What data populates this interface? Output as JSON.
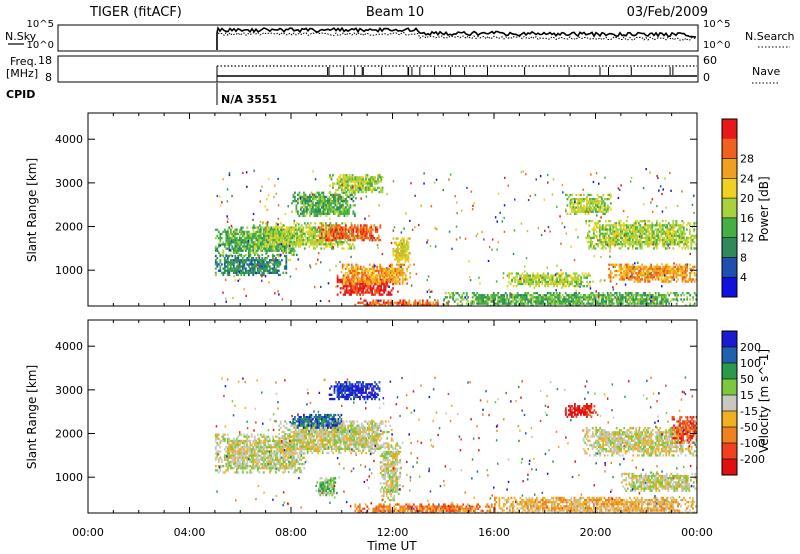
{
  "header": {
    "radar": "TIGER (fitACF)",
    "beam": "Beam 10",
    "date": "03/Feb/2009"
  },
  "summary": {
    "nsky_label": "N.Sky",
    "nsearch_label": "N.Search",
    "freq_label_line1": "Freq.",
    "freq_label_line2": "[MHz]",
    "nave_label": "Nave",
    "cpid_label": "CPID",
    "cpid_value": "N/A 3551",
    "noise_ticks": [
      "10^5",
      "10^0"
    ],
    "freq_ticks": [
      "18",
      "8"
    ],
    "nave_ticks": [
      "60",
      "0"
    ]
  },
  "x_axis": {
    "label": "Time UT",
    "ticks": [
      "00:00",
      "04:00",
      "08:00",
      "12:00",
      "16:00",
      "20:00",
      "00:00"
    ]
  },
  "colors": {
    "power": [
      "#1010e0",
      "#1e50b0",
      "#2e8a5a",
      "#44b044",
      "#a8d23c",
      "#f0d020",
      "#f0a020",
      "#f06020",
      "#e81818"
    ],
    "velocity": [
      "#1a1ad0",
      "#1f60b0",
      "#2a9a4a",
      "#7ac83c",
      "#c8c8c0",
      "#f0b020",
      "#f08020",
      "#f04020",
      "#e01010"
    ]
  },
  "chart_data": [
    {
      "type": "heatmap",
      "panel": "power",
      "title": "",
      "xlabel": "Time UT",
      "ylabel": "Slant Range [km]",
      "x_ticks": [
        "00:00",
        "04:00",
        "08:00",
        "12:00",
        "16:00",
        "20:00",
        "00:00"
      ],
      "y_ticks": [
        1000,
        2000,
        3000,
        4000
      ],
      "ylim": [
        180,
        4600
      ],
      "xlim_hours": [
        0,
        24
      ],
      "data_start_hour": 5.0,
      "colorbar": {
        "label": "Power [dB]",
        "ticks": [
          "4",
          "8",
          "12",
          "16",
          "20",
          "24",
          "28"
        ]
      },
      "regions": [
        {
          "t0": 5.0,
          "t1": 8.2,
          "r0": 1350,
          "r1": 2000,
          "level": 3
        },
        {
          "t0": 5.0,
          "t1": 7.8,
          "r0": 900,
          "r1": 1350,
          "level": 2
        },
        {
          "t0": 6.5,
          "t1": 10.5,
          "r0": 1500,
          "r1": 2100,
          "level": 4
        },
        {
          "t0": 9.0,
          "t1": 11.5,
          "r0": 1700,
          "r1": 2050,
          "level": 7
        },
        {
          "t0": 8.0,
          "t1": 10.5,
          "r0": 2250,
          "r1": 2800,
          "level": 3
        },
        {
          "t0": 9.5,
          "t1": 11.6,
          "r0": 2800,
          "r1": 3200,
          "level": 4
        },
        {
          "t0": 9.8,
          "t1": 12.0,
          "r0": 450,
          "r1": 900,
          "level": 8
        },
        {
          "t0": 10.0,
          "t1": 12.7,
          "r0": 700,
          "r1": 1150,
          "level": 6
        },
        {
          "t0": 12.0,
          "t1": 12.7,
          "r0": 1200,
          "r1": 1750,
          "level": 5
        },
        {
          "t0": 10.5,
          "t1": 14.2,
          "r0": 200,
          "r1": 330,
          "level": 7
        },
        {
          "t0": 16.5,
          "t1": 19.8,
          "r0": 650,
          "r1": 950,
          "level": 4
        },
        {
          "t0": 18.8,
          "t1": 20.6,
          "r0": 2300,
          "r1": 2750,
          "level": 4
        },
        {
          "t0": 19.6,
          "t1": 24.0,
          "r0": 1500,
          "r1": 2150,
          "level": 4
        },
        {
          "t0": 20.5,
          "t1": 24.0,
          "r0": 750,
          "r1": 1150,
          "level": 6
        },
        {
          "t0": 14.0,
          "t1": 24.0,
          "r0": 200,
          "r1": 500,
          "level": 3
        }
      ]
    },
    {
      "type": "heatmap",
      "panel": "velocity",
      "title": "",
      "xlabel": "Time UT",
      "ylabel": "Slant Range [km]",
      "x_ticks": [
        "00:00",
        "04:00",
        "08:00",
        "12:00",
        "16:00",
        "20:00",
        "00:00"
      ],
      "y_ticks": [
        1000,
        2000,
        3000,
        4000
      ],
      "ylim": [
        180,
        4600
      ],
      "xlim_hours": [
        0,
        24
      ],
      "data_start_hour": 5.0,
      "colorbar": {
        "label": "Velocity [m s^-1]",
        "ticks": [
          "200",
          "100",
          "50",
          "15",
          "-15",
          "-50",
          "-100",
          "-200"
        ]
      },
      "regions": [
        {
          "t0": 5.0,
          "t1": 8.5,
          "r0": 1100,
          "r1": 2000,
          "level": 4
        },
        {
          "t0": 7.5,
          "t1": 12.0,
          "r0": 1550,
          "r1": 2300,
          "level": 4
        },
        {
          "t0": 8.0,
          "t1": 10.0,
          "r0": 2150,
          "r1": 2450,
          "level": 1
        },
        {
          "t0": 9.5,
          "t1": 11.5,
          "r0": 2800,
          "r1": 3200,
          "level": 0
        },
        {
          "t0": 9.0,
          "t1": 9.8,
          "r0": 600,
          "r1": 1000,
          "level": 3
        },
        {
          "t0": 11.5,
          "t1": 12.3,
          "r0": 500,
          "r1": 1800,
          "level": 4
        },
        {
          "t0": 10.5,
          "t1": 16.0,
          "r0": 200,
          "r1": 400,
          "level": 6
        },
        {
          "t0": 16.0,
          "t1": 24.0,
          "r0": 200,
          "r1": 550,
          "level": 5
        },
        {
          "t0": 18.8,
          "t1": 20.0,
          "r0": 2400,
          "r1": 2700,
          "level": 8
        },
        {
          "t0": 19.5,
          "t1": 24.0,
          "r0": 1500,
          "r1": 2150,
          "level": 4
        },
        {
          "t0": 23.0,
          "t1": 24.0,
          "r0": 1800,
          "r1": 2400,
          "level": 7
        },
        {
          "t0": 21.0,
          "t1": 24.0,
          "r0": 700,
          "r1": 1100,
          "level": 4
        }
      ]
    }
  ]
}
